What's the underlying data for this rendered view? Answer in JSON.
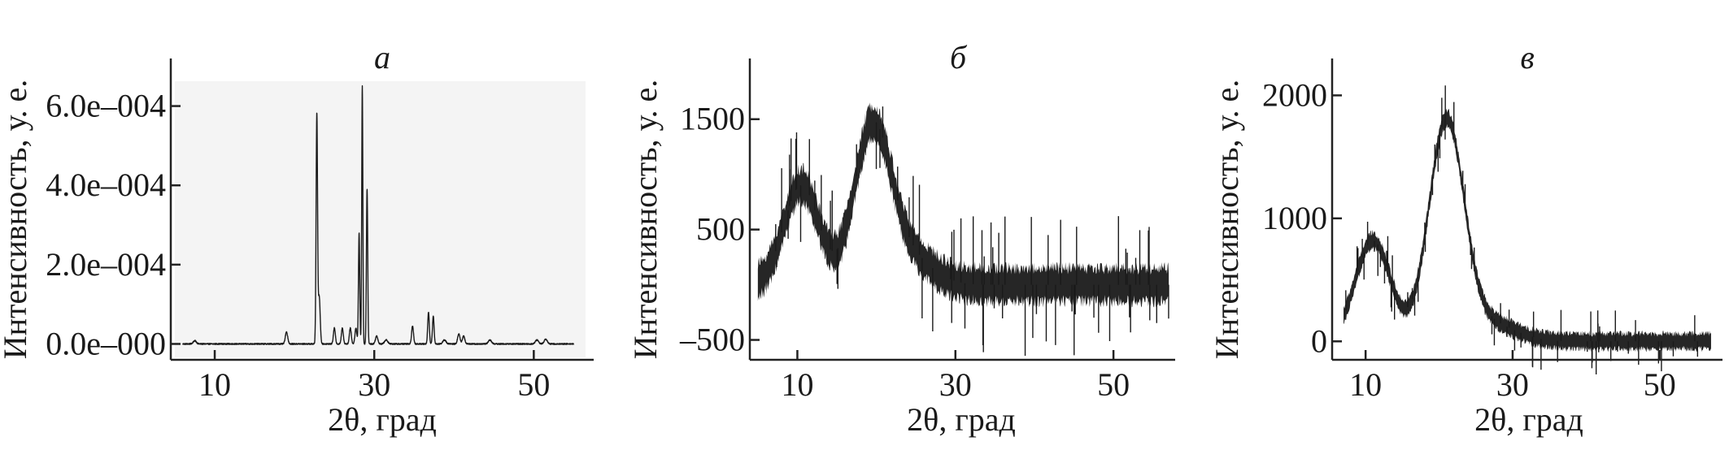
{
  "chart_data": [
    {
      "type": "line",
      "title": "а",
      "xlabel": "2θ, град",
      "ylabel": "Интенсивность, у. е.",
      "xlim": [
        5,
        57
      ],
      "ylim": [
        -4e-05,
        0.00072
      ],
      "x_ticks": [
        10,
        30,
        50
      ],
      "x_tick_labels": [
        "10",
        "30",
        "50"
      ],
      "y_ticks": [
        0,
        0.0002,
        0.0004,
        0.0006
      ],
      "y_tick_labels": [
        "0.0e–000",
        "2.0e–004",
        "4.0e–004",
        "6.0e–004"
      ],
      "baseline": 0,
      "noise": 1.5e-06,
      "range": [
        6,
        55
      ],
      "peaks": [
        {
          "x": 7.5,
          "h": 8e-06,
          "w": 0.2
        },
        {
          "x": 19.0,
          "h": 3e-05,
          "w": 0.15
        },
        {
          "x": 22.8,
          "h": 0.00058,
          "w": 0.09
        },
        {
          "x": 23.1,
          "h": 0.00012,
          "w": 0.12
        },
        {
          "x": 25.0,
          "h": 4e-05,
          "w": 0.12
        },
        {
          "x": 26.0,
          "h": 4e-05,
          "w": 0.12
        },
        {
          "x": 27.0,
          "h": 4e-05,
          "w": 0.12
        },
        {
          "x": 27.7,
          "h": 4e-05,
          "w": 0.12
        },
        {
          "x": 28.1,
          "h": 0.00028,
          "w": 0.08
        },
        {
          "x": 28.5,
          "h": 0.00065,
          "w": 0.07
        },
        {
          "x": 29.1,
          "h": 0.00039,
          "w": 0.08
        },
        {
          "x": 30.3,
          "h": 2e-05,
          "w": 0.15
        },
        {
          "x": 31.5,
          "h": 1e-05,
          "w": 0.2
        },
        {
          "x": 34.8,
          "h": 4.5e-05,
          "w": 0.12
        },
        {
          "x": 36.8,
          "h": 8e-05,
          "w": 0.1
        },
        {
          "x": 37.4,
          "h": 7e-05,
          "w": 0.1
        },
        {
          "x": 38.8,
          "h": 1e-05,
          "w": 0.2
        },
        {
          "x": 40.6,
          "h": 2.5e-05,
          "w": 0.15
        },
        {
          "x": 41.2,
          "h": 2e-05,
          "w": 0.15
        },
        {
          "x": 44.5,
          "h": 1e-05,
          "w": 0.2
        },
        {
          "x": 50.4,
          "h": 1e-05,
          "w": 0.2
        },
        {
          "x": 51.5,
          "h": 1.2e-05,
          "w": 0.2
        }
      ]
    },
    {
      "type": "line",
      "title": "б",
      "xlabel": "2θ, град",
      "ylabel": "Интенсивность, у. е.",
      "xlim": [
        4.5,
        57.5
      ],
      "ylim": [
        -680,
        2050
      ],
      "x_ticks": [
        10,
        30,
        50
      ],
      "x_tick_labels": [
        "10",
        "30",
        "50"
      ],
      "y_ticks": [
        -500,
        500,
        1500
      ],
      "y_tick_labels": [
        "–500",
        "500",
        "1500"
      ],
      "baseline": 0,
      "noise": 130,
      "range": [
        5,
        57
      ],
      "peaks": [
        {
          "x": 10.5,
          "h": 900,
          "w": 2.2
        },
        {
          "x": 19.5,
          "h": 1400,
          "w": 2.3
        },
        {
          "x": 24.0,
          "h": 250,
          "w": 3.0
        }
      ]
    },
    {
      "type": "line",
      "title": "в",
      "xlabel": "2θ, град",
      "ylabel": "Интенсивность, у. е.",
      "xlim": [
        6,
        58
      ],
      "ylim": [
        -150,
        2300
      ],
      "x_ticks": [
        10,
        30,
        50
      ],
      "x_tick_labels": [
        "10",
        "30",
        "50"
      ],
      "y_ticks": [
        0,
        1000,
        2000
      ],
      "y_tick_labels": [
        "0",
        "1000",
        "2000"
      ],
      "baseline": 0,
      "noise": 55,
      "range": [
        7,
        57
      ],
      "peaks": [
        {
          "x": 11.0,
          "h": 820,
          "w": 2.4
        },
        {
          "x": 21.0,
          "h": 1780,
          "w": 2.4
        },
        {
          "x": 27.0,
          "h": 140,
          "w": 3.5
        }
      ]
    }
  ]
}
